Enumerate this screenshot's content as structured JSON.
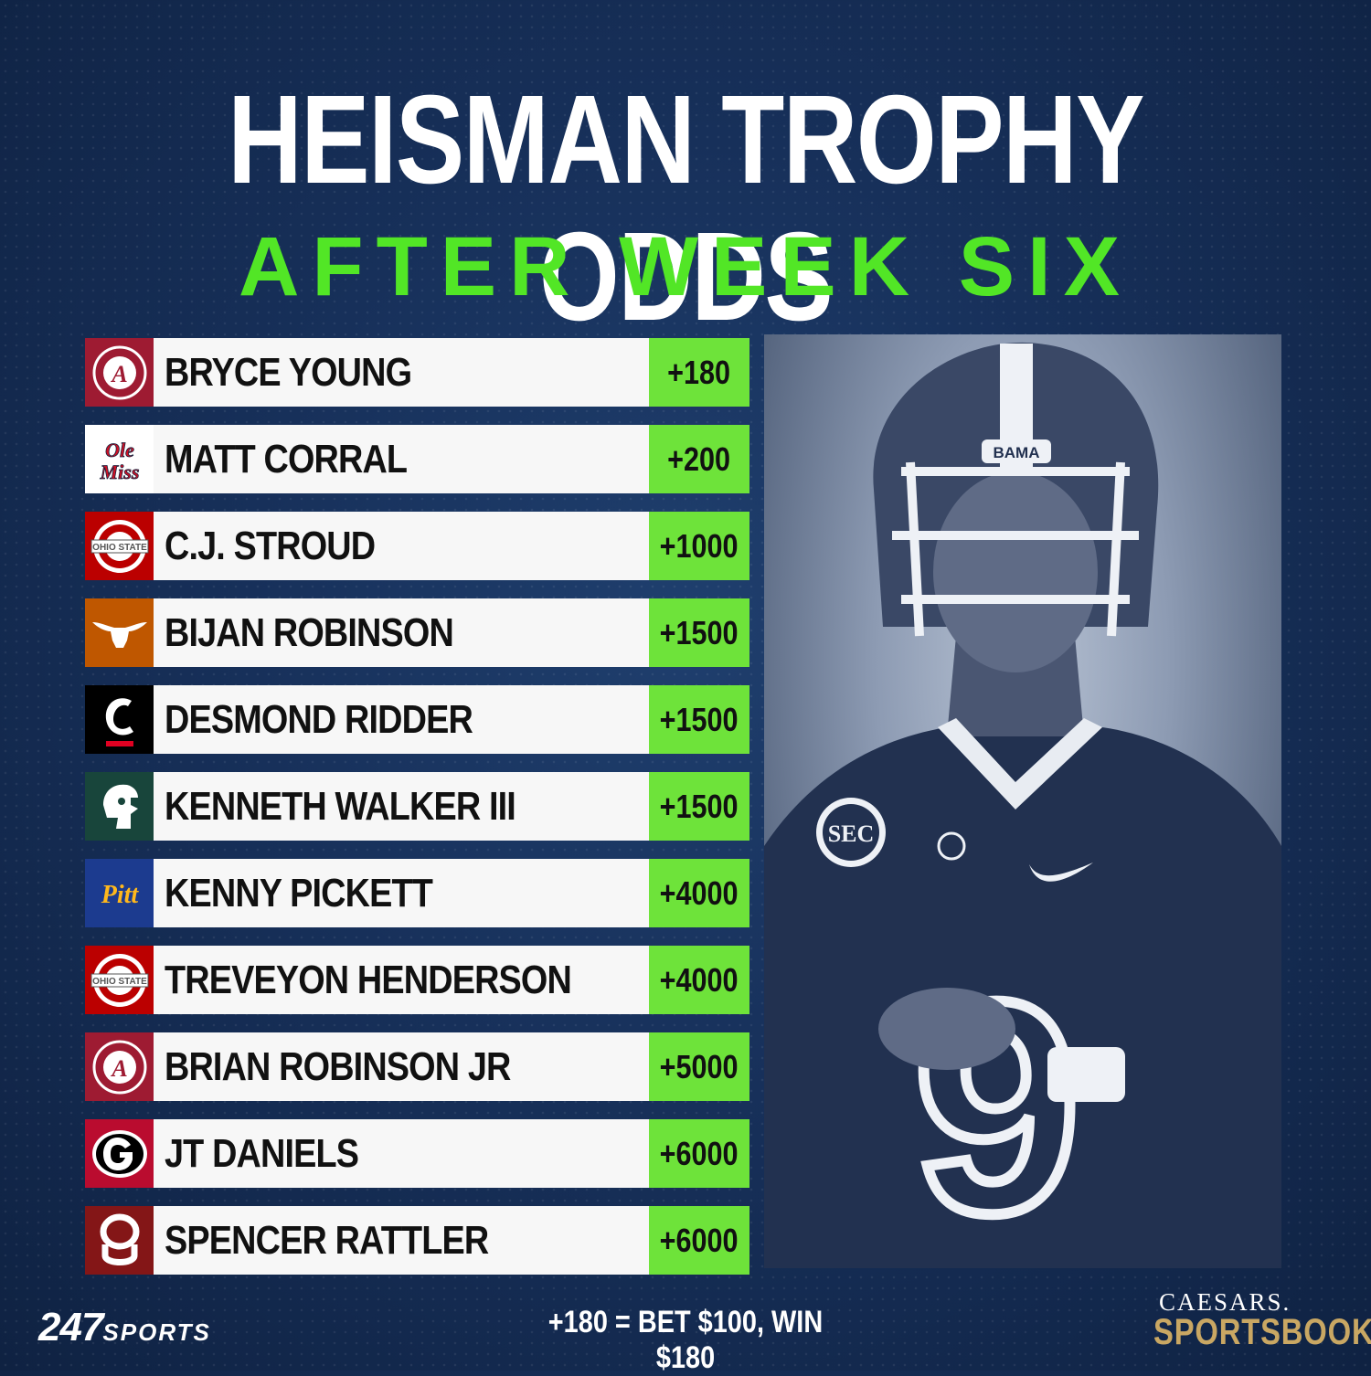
{
  "title": "HEISMAN TROPHY ODDS",
  "subtitle": "AFTER WEEK SIX",
  "players": [
    {
      "name": "BRYCE YOUNG",
      "odds": "+180",
      "team_logo": "alabama-logo",
      "color": "#9e1b32"
    },
    {
      "name": "MATT CORRAL",
      "odds": "+200",
      "team_logo": "ole-miss-logo",
      "color": "#ffffff"
    },
    {
      "name": "C.J. STROUD",
      "odds": "+1000",
      "team_logo": "ohio-state-logo",
      "color": "#bb0000"
    },
    {
      "name": "BIJAN ROBINSON",
      "odds": "+1500",
      "team_logo": "texas-longhorns-logo",
      "color": "#bf5700"
    },
    {
      "name": "DESMOND RIDDER",
      "odds": "+1500",
      "team_logo": "cincinnati-logo",
      "color": "#000000"
    },
    {
      "name": "KENNETH WALKER III",
      "odds": "+1500",
      "team_logo": "michigan-state-logo",
      "color": "#18453b"
    },
    {
      "name": "KENNY PICKETT",
      "odds": "+4000",
      "team_logo": "pitt-logo",
      "color": "#1c3b8f"
    },
    {
      "name": "TREVEYON HENDERSON",
      "odds": "+4000",
      "team_logo": "ohio-state-logo",
      "color": "#bb0000"
    },
    {
      "name": "BRIAN ROBINSON JR",
      "odds": "+5000",
      "team_logo": "alabama-logo",
      "color": "#9e1b32"
    },
    {
      "name": "JT DANIELS",
      "odds": "+6000",
      "team_logo": "georgia-logo",
      "color": "#ba0c2f"
    },
    {
      "name": "SPENCER RATTLER",
      "odds": "+6000",
      "team_logo": "oklahoma-logo",
      "color": "#841617"
    }
  ],
  "photo": {
    "helmet_text": "BAMA",
    "patch_text": "SEC",
    "jersey_number": "9"
  },
  "footer": {
    "brand_number": "247",
    "brand_word": "SPORTS",
    "note": "+180 = BET $100, WIN $180",
    "sponsor_top": "CAESARS.",
    "sponsor_bottom": "SPORTSBOOK"
  },
  "colors": {
    "accent_green": "#52e626",
    "odds_green": "#6ee33a",
    "background": "#17305a",
    "gold": "#c9a763"
  }
}
